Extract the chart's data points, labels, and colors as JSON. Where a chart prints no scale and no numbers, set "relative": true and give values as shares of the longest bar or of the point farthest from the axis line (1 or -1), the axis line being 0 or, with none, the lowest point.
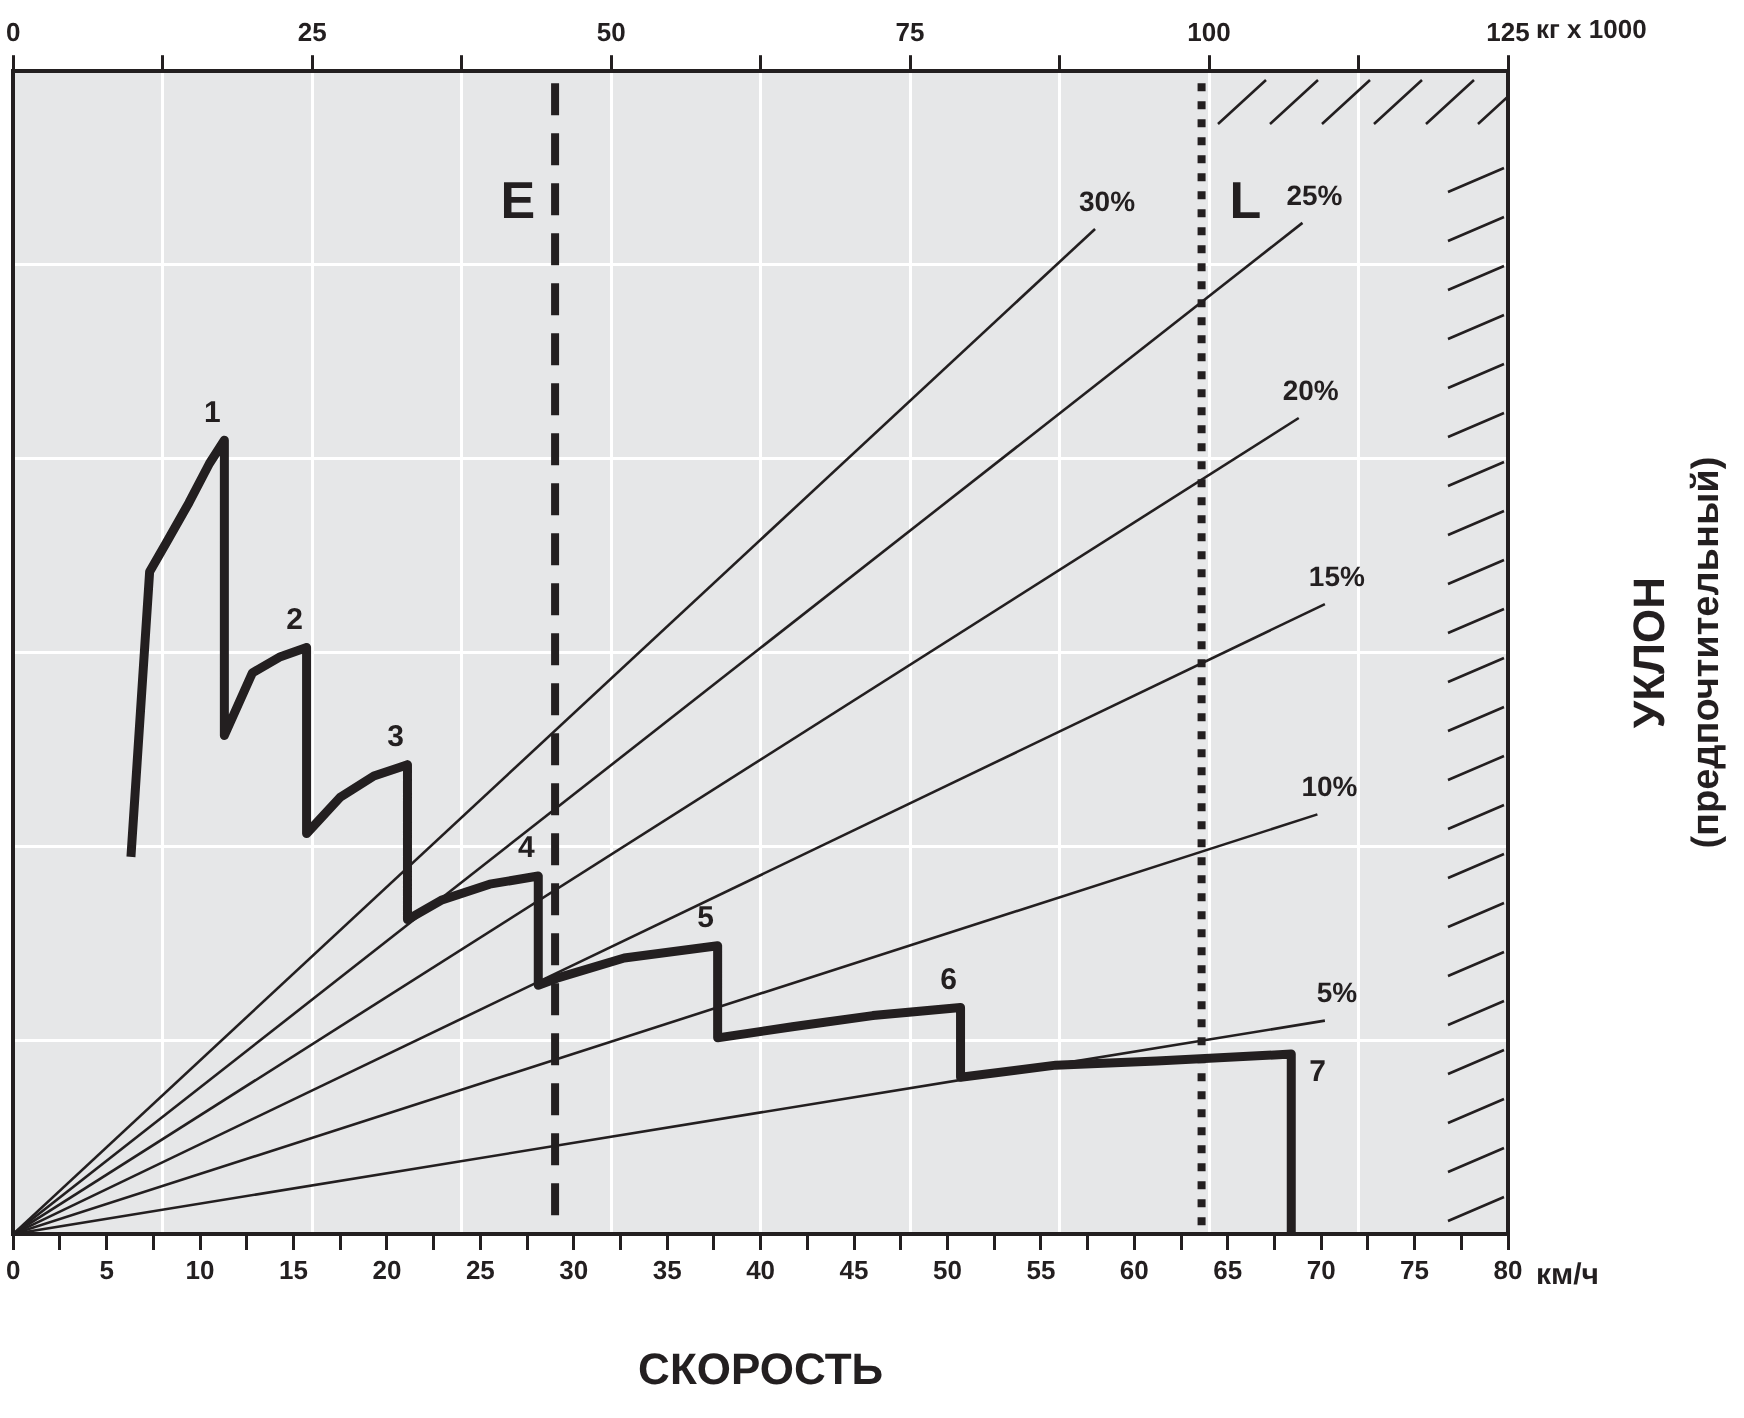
{
  "chart_data": {
    "type": "line",
    "xlabel": "СКОРОСТЬ",
    "ylabel": "УКЛОН\n(предпочтительный)",
    "x2label": "кг x 1000",
    "relative": true,
    "grid": true,
    "legend": false,
    "xlim": [
      0,
      80
    ],
    "xticks": [
      0,
      {
        "value": 2.5,
        "label": null
      },
      5,
      {
        "value": 7.5,
        "label": null
      },
      10,
      {
        "value": 12.5,
        "label": null
      },
      15,
      {
        "value": 17.5,
        "label": null
      },
      20,
      {
        "value": 22.5,
        "label": null
      },
      25,
      {
        "value": 27.5,
        "label": null
      },
      30,
      {
        "value": 32.5,
        "label": null
      },
      35,
      {
        "value": 37.5,
        "label": null
      },
      40,
      {
        "value": 42.5,
        "label": null
      },
      45,
      {
        "value": 47.5,
        "label": null
      },
      50,
      {
        "value": 52.5,
        "label": null
      },
      55,
      {
        "value": 57.5,
        "label": null
      },
      60,
      {
        "value": 62.5,
        "label": null
      },
      65,
      {
        "value": 67.5,
        "label": null
      },
      70,
      {
        "value": 72.5,
        "label": null
      },
      75,
      {
        "value": 77.5,
        "label": null
      },
      80
    ],
    "x2lim": [
      0,
      125
    ],
    "x2ticks": [
      0,
      {
        "value": 12.5,
        "label": null
      },
      25,
      {
        "value": 37.5,
        "label": null
      },
      50,
      {
        "value": 62.5,
        "label": null
      },
      75,
      {
        "value": 87.5,
        "label": null
      },
      100,
      {
        "value": 112.5,
        "label": null
      },
      125
    ],
    "series": [
      {
        "color": "#231f20",
        "x": [
          6.3,
          7.3,
          8.2,
          9.4,
          10.5,
          11.3,
          11.3,
          12.8,
          14.3,
          15.7,
          15.7,
          17.5,
          19.3,
          21.1,
          21.1,
          22.9,
          25.5,
          28.1,
          28.1,
          29.1,
          32.7,
          37.7,
          37.7,
          41.7,
          46.0,
          50.7,
          50.7,
          55.8,
          61.2,
          68.4,
          68.4
        ],
        "values": [
          0.373,
          0.655,
          0.684,
          0.723,
          0.762,
          0.785,
          0.493,
          0.555,
          0.571,
          0.58,
          0.396,
          0.432,
          0.453,
          0.464,
          0.311,
          0.33,
          0.346,
          0.354,
          0.246,
          0.253,
          0.273,
          0.285,
          0.194,
          0.205,
          0.216,
          0.224,
          0.155,
          0.167,
          0.171,
          0.178,
          0
        ]
      },
      {
        "name": "30%",
        "color": "#231f20",
        "x": [
          0,
          57.9
        ],
        "values": [
          0,
          0.994
        ]
      },
      {
        "name": "25%",
        "color": "#231f20",
        "x": [
          0,
          69.0
        ],
        "values": [
          0,
          1
        ]
      },
      {
        "name": "20%",
        "color": "#231f20",
        "x": [
          0,
          68.8
        ],
        "values": [
          0,
          0.807
        ]
      },
      {
        "name": "15%",
        "color": "#231f20",
        "x": [
          0,
          70.2
        ],
        "values": [
          0,
          0.623
        ]
      },
      {
        "name": "10%",
        "color": "#231f20",
        "x": [
          0,
          69.8
        ],
        "values": [
          0,
          0.415
        ]
      },
      {
        "name": "5%",
        "color": "#231f20",
        "x": [
          0,
          70.2
        ],
        "values": [
          0,
          0.211
        ]
      }
    ],
    "ref_lines": [
      {
        "axis": "x",
        "value": 29.0,
        "label": "E",
        "color": "#231f20",
        "line_style": "dashed"
      },
      {
        "axis": "x",
        "value": 63.6,
        "label": "L",
        "color": "#231f20",
        "line_style": "dotted"
      }
    ],
    "annotations": [
      {
        "text": "1",
        "x": 11.3,
        "y": 0.785
      },
      {
        "text": "2",
        "x": 15.7,
        "y": 0.58
      },
      {
        "text": "3",
        "x": 21.1,
        "y": 0.464
      },
      {
        "text": "4",
        "x": 28.1,
        "y": 0.354
      },
      {
        "text": "5",
        "x": 37.7,
        "y": 0.285
      },
      {
        "text": "6",
        "x": 50.7,
        "y": 0.224
      },
      {
        "text": "7",
        "x": 68.4,
        "y": 0.178
      },
      "км/ч"
    ]
  }
}
